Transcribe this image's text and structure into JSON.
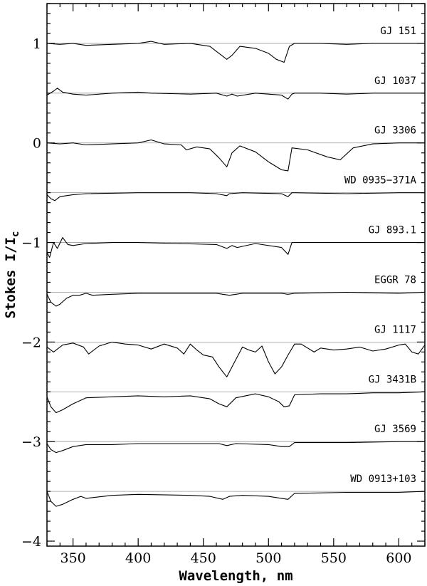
{
  "chart_data": {
    "type": "line",
    "title": "",
    "xlabel": "Wavelength, nm",
    "ylabel": "Stokes I/I",
    "ylabel_subscript": "c",
    "xlim": [
      330,
      620
    ],
    "ylim": [
      -4.05,
      1.4
    ],
    "xticks_major": [
      350,
      400,
      450,
      500,
      550,
      600
    ],
    "yticks_major": [
      1,
      0,
      -1,
      -2,
      -3,
      -4
    ],
    "ytick_labels": [
      "1",
      "0",
      "−1",
      "−2",
      "−3",
      "−4"
    ],
    "grid": false,
    "series": [
      {
        "name": "GJ 151",
        "baseline": 1.0,
        "x": [
          330,
          340,
          350,
          360,
          380,
          400,
          410,
          420,
          440,
          455,
          462,
          468,
          472,
          478,
          490,
          500,
          506,
          512,
          516,
          520,
          540,
          560,
          580,
          600,
          620
        ],
        "y": [
          1.0,
          0.99,
          1.0,
          0.98,
          0.99,
          1.0,
          1.02,
          0.99,
          1.0,
          0.97,
          0.9,
          0.84,
          0.88,
          0.97,
          0.95,
          0.9,
          0.84,
          0.81,
          0.97,
          1.0,
          1.0,
          0.99,
          1.0,
          1.0,
          1.0
        ]
      },
      {
        "name": "GJ 1037",
        "baseline": 0.5,
        "x": [
          330,
          335,
          338,
          342,
          350,
          360,
          380,
          400,
          410,
          440,
          460,
          468,
          472,
          476,
          490,
          500,
          510,
          515,
          518,
          520,
          540,
          560,
          580,
          600,
          620
        ],
        "y": [
          0.48,
          0.52,
          0.55,
          0.51,
          0.49,
          0.48,
          0.5,
          0.51,
          0.5,
          0.49,
          0.5,
          0.47,
          0.49,
          0.47,
          0.5,
          0.49,
          0.48,
          0.44,
          0.49,
          0.5,
          0.5,
          0.49,
          0.5,
          0.5,
          0.5
        ]
      },
      {
        "name": "GJ 3306",
        "baseline": 0.0,
        "x": [
          330,
          340,
          350,
          360,
          380,
          400,
          410,
          420,
          433,
          437,
          445,
          455,
          462,
          468,
          472,
          478,
          490,
          500,
          510,
          515,
          518,
          530,
          545,
          555,
          565,
          580,
          600,
          620
        ],
        "y": [
          0.0,
          -0.01,
          0.0,
          -0.02,
          -0.01,
          0.0,
          0.03,
          -0.01,
          -0.02,
          -0.07,
          -0.04,
          -0.06,
          -0.15,
          -0.24,
          -0.1,
          -0.03,
          -0.09,
          -0.19,
          -0.27,
          -0.28,
          -0.05,
          -0.07,
          -0.14,
          -0.17,
          -0.05,
          -0.01,
          0.0,
          0.0
        ]
      },
      {
        "name": "WD 0935−371A",
        "baseline": -0.5,
        "x": [
          330,
          333,
          336,
          340,
          350,
          360,
          400,
          440,
          460,
          468,
          470,
          480,
          510,
          515,
          518,
          520,
          560,
          600,
          620
        ],
        "y": [
          -0.52,
          -0.56,
          -0.58,
          -0.54,
          -0.52,
          -0.51,
          -0.5,
          -0.5,
          -0.51,
          -0.53,
          -0.51,
          -0.5,
          -0.51,
          -0.54,
          -0.5,
          -0.5,
          -0.51,
          -0.5,
          -0.5
        ]
      },
      {
        "name": "GJ 893.1",
        "baseline": -1.0,
        "x": [
          330,
          332,
          335,
          338,
          342,
          346,
          350,
          360,
          380,
          400,
          430,
          460,
          468,
          472,
          476,
          490,
          510,
          515,
          518,
          520,
          540,
          560,
          580,
          600,
          620
        ],
        "y": [
          -1.1,
          -1.15,
          -1.0,
          -1.06,
          -0.95,
          -1.02,
          -1.03,
          -1.01,
          -1.0,
          -1.0,
          -1.01,
          -1.02,
          -1.06,
          -1.03,
          -1.05,
          -1.01,
          -1.05,
          -1.12,
          -1.0,
          -1.0,
          -1.0,
          -1.0,
          -1.0,
          -1.0,
          -1.0
        ]
      },
      {
        "name": "EGGR 78",
        "baseline": -1.5,
        "x": [
          330,
          333,
          337,
          340,
          345,
          350,
          355,
          360,
          365,
          380,
          400,
          430,
          460,
          470,
          480,
          510,
          515,
          520,
          560,
          600,
          620
        ],
        "y": [
          -1.52,
          -1.6,
          -1.64,
          -1.62,
          -1.56,
          -1.53,
          -1.53,
          -1.51,
          -1.53,
          -1.52,
          -1.51,
          -1.51,
          -1.51,
          -1.53,
          -1.51,
          -1.51,
          -1.52,
          -1.51,
          -1.5,
          -1.51,
          -1.5
        ]
      },
      {
        "name": "GJ 1117",
        "baseline": -2.0,
        "x": [
          330,
          335,
          342,
          350,
          358,
          362,
          370,
          380,
          390,
          400,
          410,
          420,
          430,
          435,
          440,
          445,
          450,
          457,
          462,
          468,
          474,
          480,
          485,
          490,
          495,
          500,
          505,
          510,
          515,
          520,
          525,
          535,
          540,
          550,
          560,
          570,
          580,
          590,
          600,
          605,
          610,
          615,
          620
        ],
        "y": [
          -2.05,
          -2.1,
          -2.03,
          -2.01,
          -2.05,
          -2.12,
          -2.04,
          -2.0,
          -2.02,
          -2.03,
          -2.07,
          -2.02,
          -2.06,
          -2.12,
          -2.02,
          -2.08,
          -2.13,
          -2.15,
          -2.25,
          -2.35,
          -2.2,
          -2.05,
          -2.08,
          -2.1,
          -2.04,
          -2.2,
          -2.32,
          -2.25,
          -2.13,
          -2.02,
          -2.02,
          -2.1,
          -2.06,
          -2.08,
          -2.07,
          -2.05,
          -2.09,
          -2.07,
          -2.03,
          -2.02,
          -2.1,
          -2.12,
          -2.03
        ]
      },
      {
        "name": "GJ 3431B",
        "baseline": -2.5,
        "x": [
          330,
          333,
          337,
          342,
          350,
          360,
          380,
          400,
          420,
          440,
          455,
          462,
          468,
          475,
          490,
          500,
          508,
          512,
          516,
          520,
          540,
          560,
          580,
          600,
          620
        ],
        "y": [
          -2.55,
          -2.65,
          -2.71,
          -2.68,
          -2.62,
          -2.56,
          -2.55,
          -2.54,
          -2.55,
          -2.54,
          -2.57,
          -2.62,
          -2.65,
          -2.56,
          -2.52,
          -2.55,
          -2.6,
          -2.65,
          -2.64,
          -2.53,
          -2.52,
          -2.52,
          -2.51,
          -2.51,
          -2.5
        ]
      },
      {
        "name": "GJ 3569",
        "baseline": -3.0,
        "x": [
          330,
          333,
          337,
          342,
          350,
          360,
          380,
          400,
          440,
          462,
          468,
          475,
          500,
          510,
          516,
          520,
          560,
          600,
          620
        ],
        "y": [
          -3.02,
          -3.08,
          -3.11,
          -3.09,
          -3.05,
          -3.03,
          -3.03,
          -3.02,
          -3.02,
          -3.02,
          -3.04,
          -3.02,
          -3.03,
          -3.05,
          -3.05,
          -3.01,
          -3.01,
          -3.0,
          -3.0
        ]
      },
      {
        "name": "WD 0913+103",
        "baseline": -3.5,
        "x": [
          330,
          333,
          337,
          342,
          350,
          356,
          360,
          380,
          400,
          440,
          455,
          465,
          470,
          480,
          500,
          510,
          515,
          520,
          560,
          600,
          620
        ],
        "y": [
          -3.5,
          -3.6,
          -3.65,
          -3.63,
          -3.58,
          -3.55,
          -3.57,
          -3.54,
          -3.53,
          -3.54,
          -3.55,
          -3.58,
          -3.55,
          -3.54,
          -3.55,
          -3.57,
          -3.58,
          -3.52,
          -3.51,
          -3.51,
          -3.5
        ]
      }
    ]
  }
}
